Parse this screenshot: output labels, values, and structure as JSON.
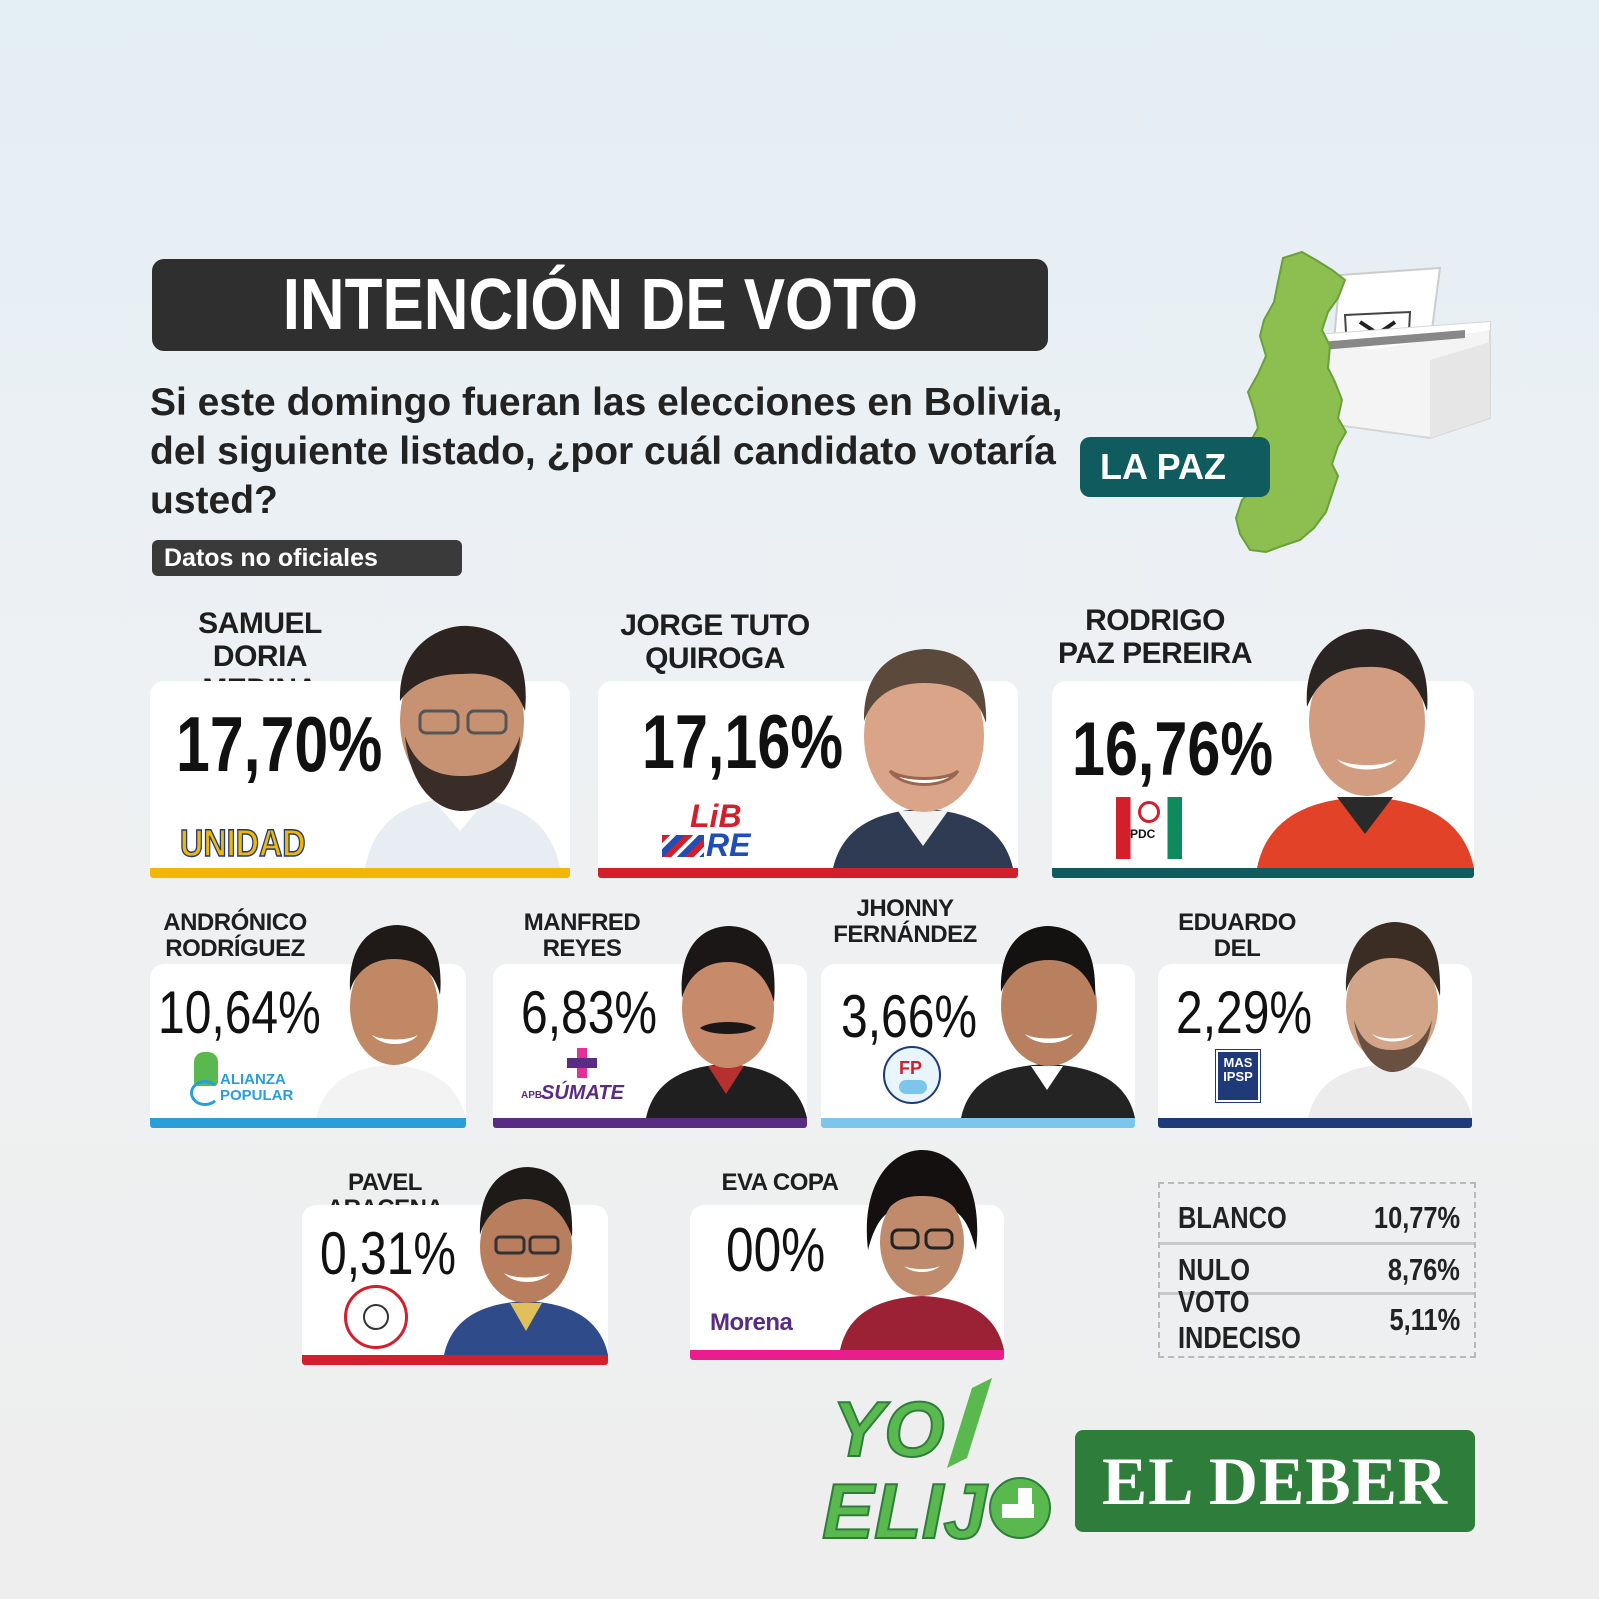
{
  "header": {
    "title": "INTENCIÓN DE VOTO",
    "question": "Si este domingo fueran las elecciones en Bolivia, del siguiente listado, ¿por cuál candidato votaría usted?",
    "badge": "Datos no oficiales",
    "region": "LA PAZ"
  },
  "candidates": [
    {
      "name_line1": "SAMUEL",
      "name_line2": "DORIA MEDINA",
      "pct": "17,70%",
      "party": "UNIDAD",
      "color": "#f2b705"
    },
    {
      "name_line1": "JORGE TUTO",
      "name_line2": "QUIROGA",
      "pct": "17,16%",
      "party_a": "LiB",
      "party_b": "RE",
      "color": "#d21f2b"
    },
    {
      "name_line1": "RODRIGO",
      "name_line2": "PAZ PEREIRA",
      "pct": "16,76%",
      "party": "PDC",
      "color": "#0f5b5e"
    },
    {
      "name_line1": "ANDRÓNICO",
      "name_line2": "RODRÍGUEZ",
      "pct": "10,64%",
      "party_a": "ALIANZA",
      "party_b": "POPULAR",
      "color": "#2a9ed8"
    },
    {
      "name_line1": "MANFRED",
      "name_line2": "REYES VILLA",
      "pct": "6,83%",
      "party_a": "APB",
      "party_b": "SÚMATE",
      "color": "#5a2b82"
    },
    {
      "name_line1": "JHONNY",
      "name_line2": "FERNÁNDEZ",
      "pct": "3,66%",
      "party": "FP",
      "color": "#7cc6ee"
    },
    {
      "name_line1": "EDUARDO",
      "name_line2": "DEL CASTILLO",
      "pct": "2,29%",
      "party_a": "MAS",
      "party_b": "IPSP",
      "color": "#1f3a78"
    },
    {
      "name_line1": "PAVEL ARACENA",
      "pct": "0,31%",
      "color": "#d21f2b"
    },
    {
      "name_line1": "EVA COPA",
      "pct": "00%",
      "party": "Morena",
      "color": "#e91e8c"
    }
  ],
  "others": [
    {
      "label": "BLANCO",
      "value": "10,77%"
    },
    {
      "label": "NULO",
      "value": "8,76%"
    },
    {
      "label": "VOTO INDECISO",
      "value": "5,11%"
    }
  ],
  "footer": {
    "yo": "YO",
    "elijo": "ELIJ",
    "eldeber": "EL DEBER"
  }
}
